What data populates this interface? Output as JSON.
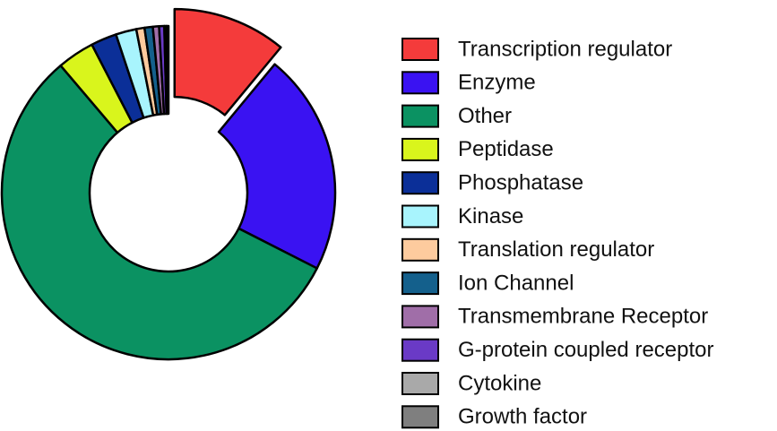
{
  "chart_data": {
    "type": "donut",
    "categories": [
      "Transcription regulator",
      "Enzyme",
      "Other",
      "Peptidase",
      "Phosphatase",
      "Kinase",
      "Translation regulator",
      "Ion Channel",
      "Transmembrane Receptor",
      "G-protein coupled receptor",
      "Cytokine",
      "Growth factor"
    ],
    "values": [
      11,
      21.5,
      56.3,
      3.6,
      2.5,
      2,
      0.8,
      0.8,
      0.6,
      0.5,
      0.2,
      0.2
    ],
    "colors": [
      "#f43b3b",
      "#3a12f2",
      "#0b9262",
      "#d9f51c",
      "#0b2f98",
      "#a8f4fd",
      "#fdcb9e",
      "#14608c",
      "#a06ea8",
      "#6a3ac6",
      "#a9a9a9",
      "#7f7f7f"
    ]
  }
}
